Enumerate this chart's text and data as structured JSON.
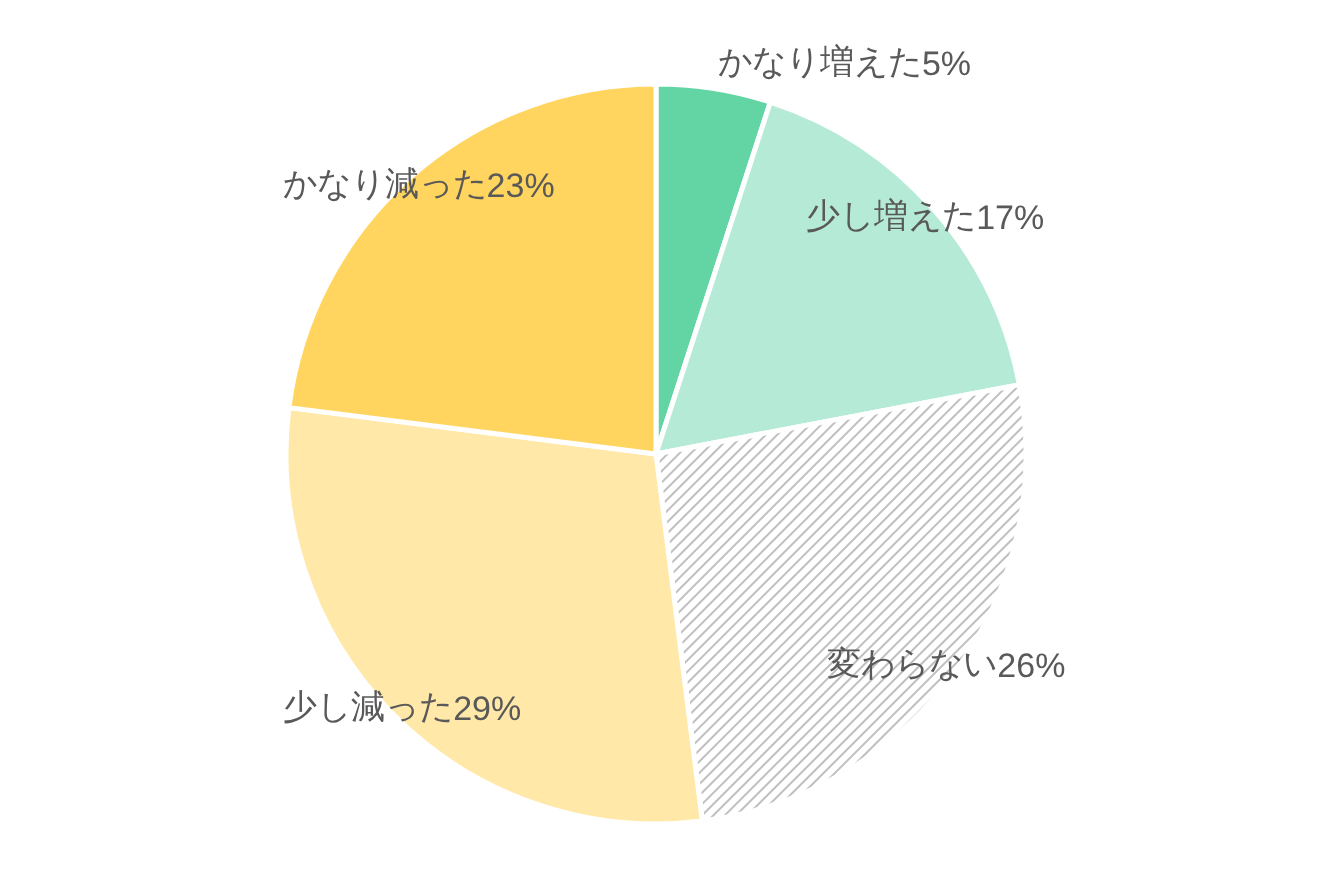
{
  "chart_data": {
    "type": "pie",
    "categories": [
      "かなり増えた",
      "少し増えた",
      "変わらない",
      "少し減った",
      "かなり減った"
    ],
    "values": [
      5,
      17,
      26,
      29,
      23
    ],
    "colors": [
      "#63d5a5",
      "#b5ebd6",
      "pattern:#bfbfbf",
      "#ffe8a8",
      "#ffd55f"
    ],
    "value_labels": [
      "5%",
      "17%",
      "26%",
      "29%",
      "23%"
    ]
  }
}
